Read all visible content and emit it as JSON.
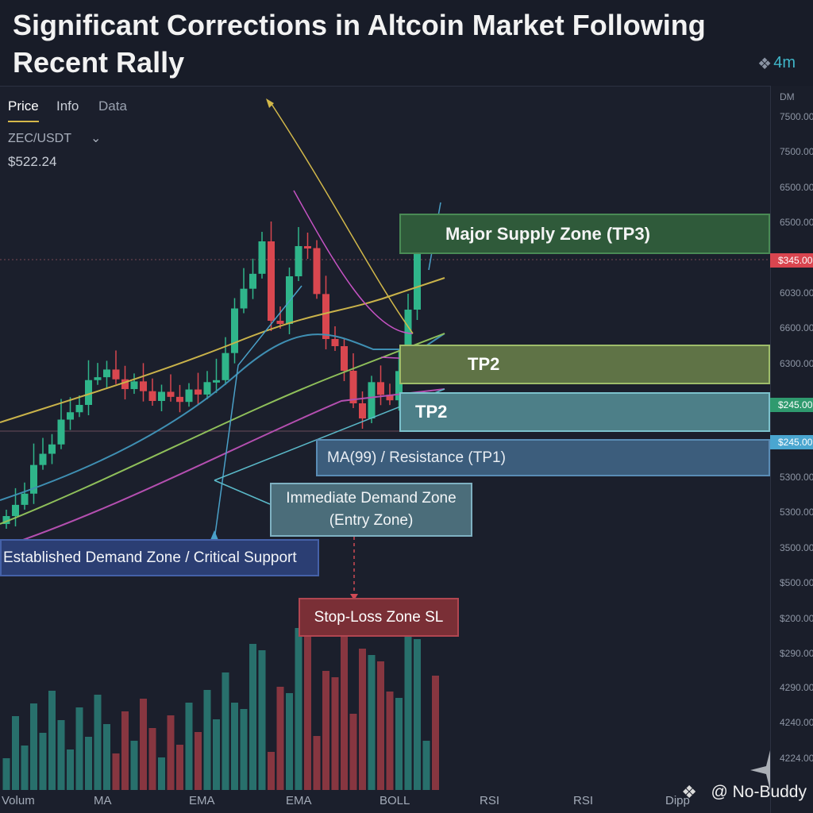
{
  "header": {
    "title": "Significant Corrections in Altcoin Market Following Recent Rally",
    "badge": "4m"
  },
  "tabs": [
    "Price",
    "Info",
    "Data"
  ],
  "pair": "ZEC/USDT",
  "price": "$522.24",
  "axis_labels": [
    "DM",
    "7500.00",
    "7500.00",
    "6500.00",
    "6500.00",
    "$345.00",
    "6030.00",
    "6600.00",
    "6300.00",
    "$245.00",
    "$245.00",
    "5300.00",
    "5300.00",
    "3500.00",
    "$500.00",
    "$200.00",
    "$290.00",
    "4290.00",
    "4240.00",
    "4224.00"
  ],
  "zones": {
    "supply": "Major Supply Zone (TP3)",
    "tp2_upper": "TP2",
    "tp2_lower": "TP2",
    "resistance": "MA(99) / Resistance (TP1)",
    "demand": [
      "Immediate Demand Zone",
      "(Entry Zone)"
    ],
    "support": "Established Demand Zone / Critical Support",
    "stop_loss": "Stop-Loss Zone SL"
  },
  "indicators": [
    "Volum",
    "MA",
    "EMA",
    "EMA",
    "BOLL",
    "RSI",
    "RSI",
    "Dipp"
  ],
  "watermark": "@ No-Buddy"
}
